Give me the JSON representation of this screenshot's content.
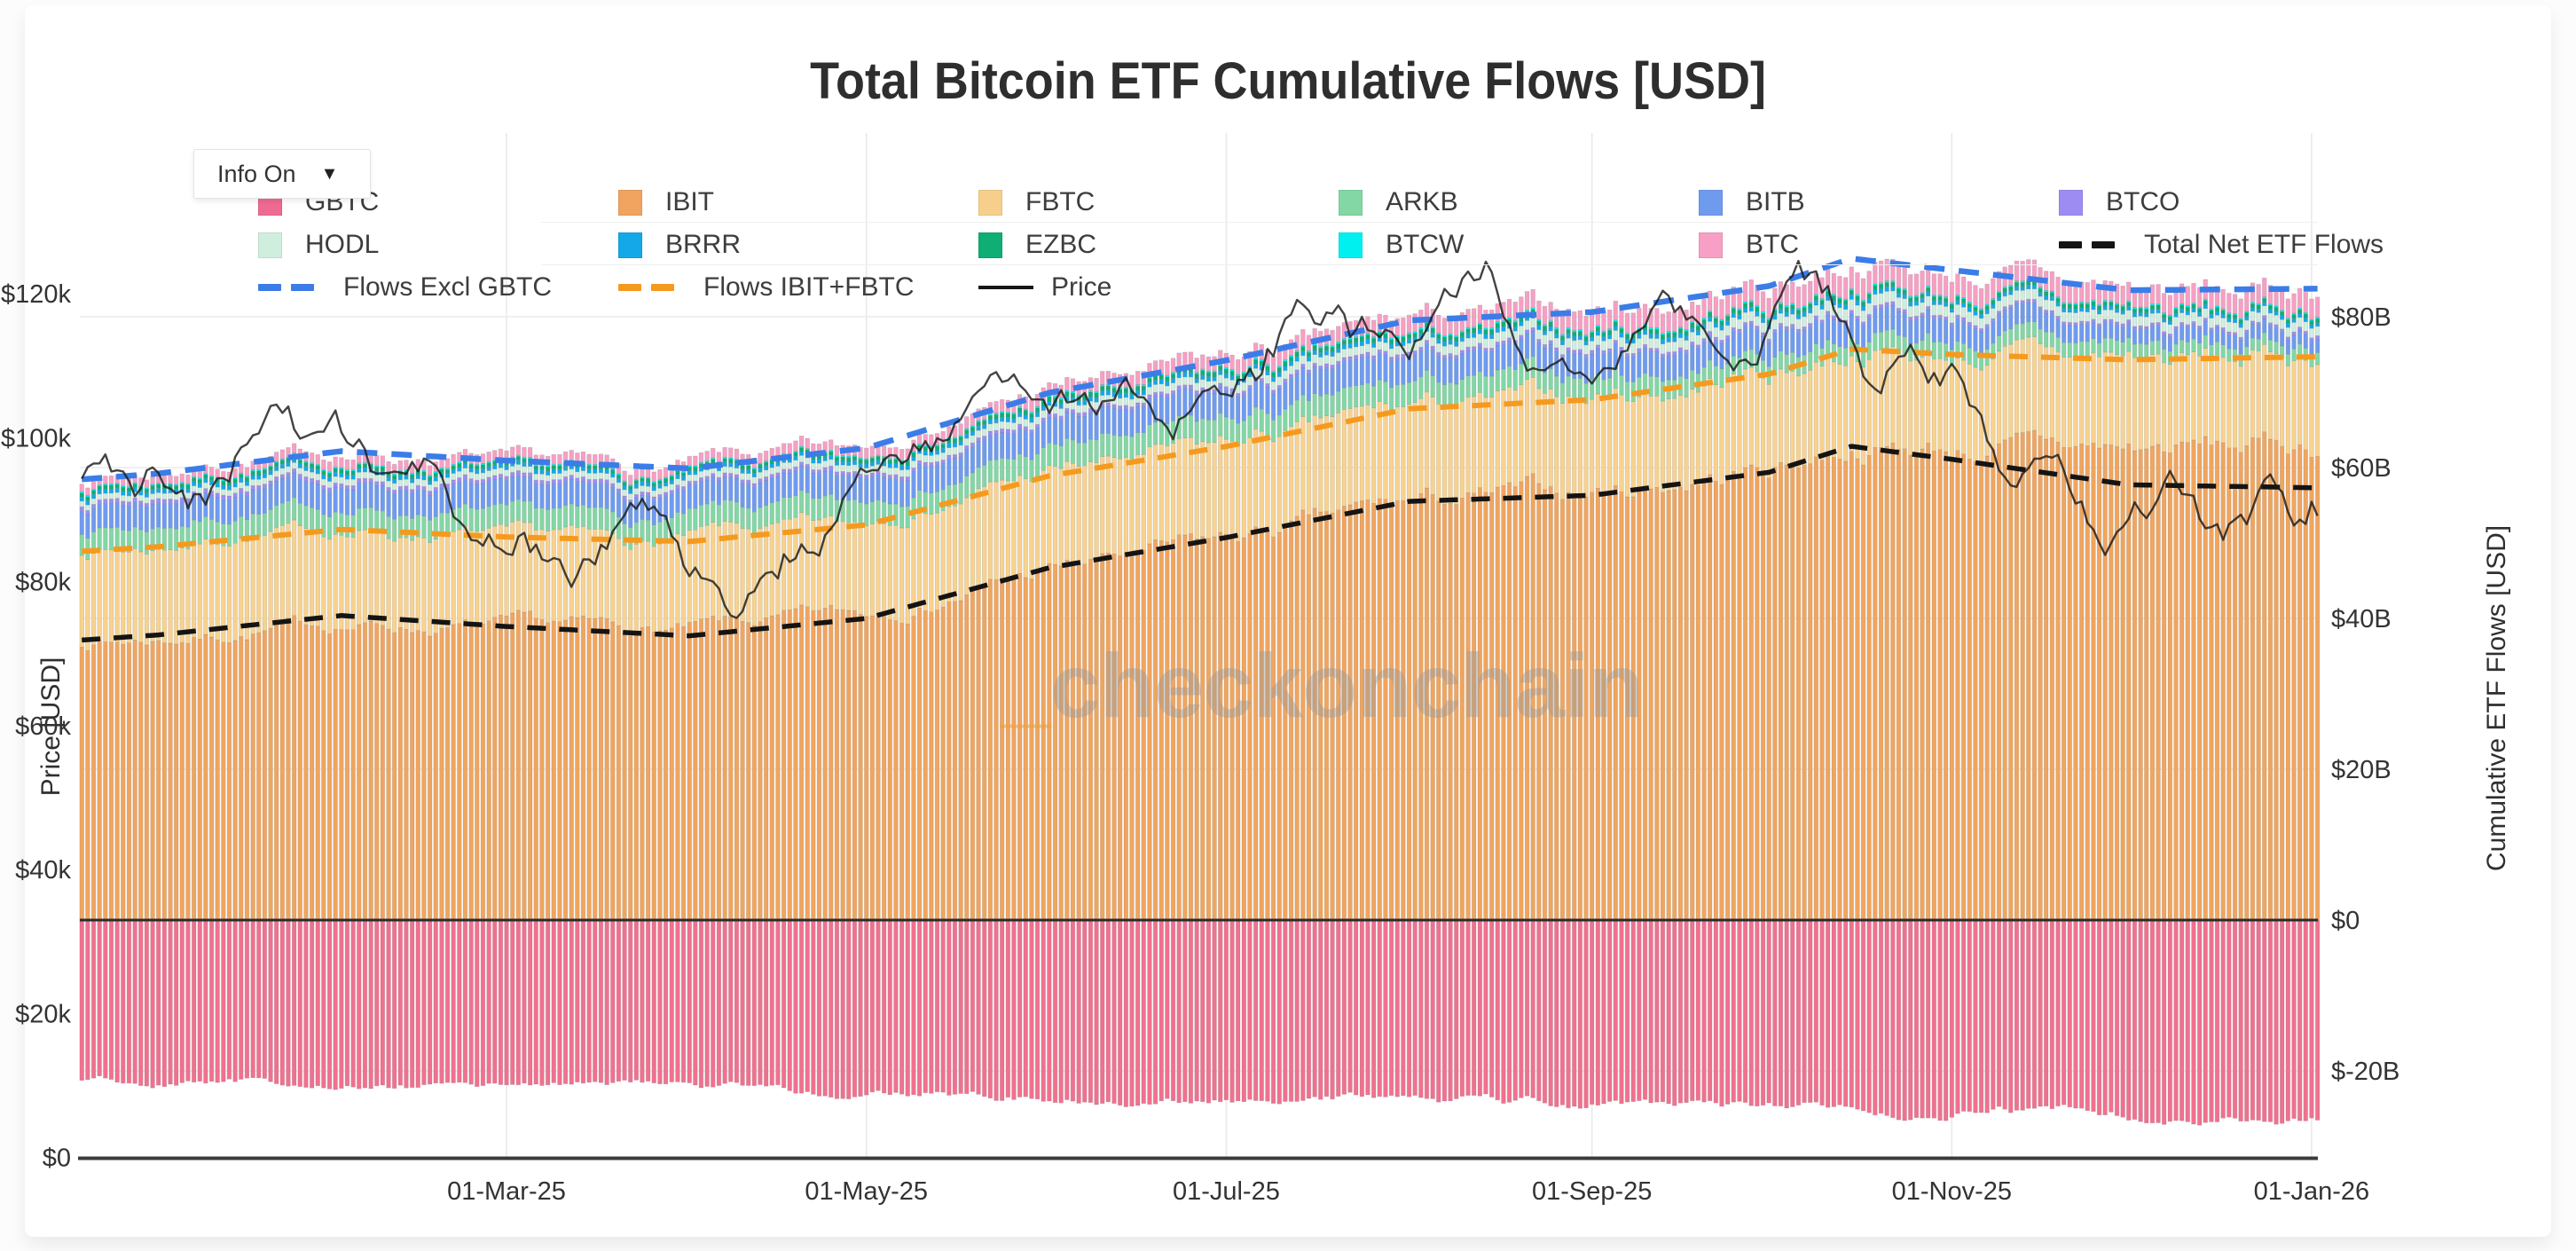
{
  "title": "Total Bitcoin ETF Cumulative Flows [USD]",
  "controls": {
    "info_label": "Info On",
    "dropdown_arrow": "▼"
  },
  "watermark": {
    "prefix": "_",
    "text": "checkonchain",
    "prefix_color": "#eba23c",
    "text_color": "#9a9a9a"
  },
  "legend": {
    "items": [
      {
        "label": "GBTC",
        "color": "#EF6A92",
        "icon": "square",
        "row": 0,
        "col": 0
      },
      {
        "label": "IBIT",
        "color": "#F1A45F",
        "icon": "square",
        "row": 0,
        "col": 1
      },
      {
        "label": "FBTC",
        "color": "#F7CF8C",
        "icon": "square",
        "row": 0,
        "col": 2
      },
      {
        "label": "ARKB",
        "color": "#82D7A5",
        "icon": "square",
        "row": 0,
        "col": 3
      },
      {
        "label": "BITB",
        "color": "#6F9BEF",
        "icon": "square",
        "row": 0,
        "col": 4
      },
      {
        "label": "BTCO",
        "color": "#9D8DF2",
        "icon": "square",
        "row": 0,
        "col": 5
      },
      {
        "label": "HODL",
        "color": "#CFEEDE",
        "icon": "square",
        "row": 1,
        "col": 0
      },
      {
        "label": "BRRR",
        "color": "#14A8E8",
        "icon": "square",
        "row": 1,
        "col": 1
      },
      {
        "label": "EZBC",
        "color": "#0FAE74",
        "icon": "square",
        "row": 1,
        "col": 2
      },
      {
        "label": "BTCW",
        "color": "#00F0F0",
        "icon": "square",
        "row": 1,
        "col": 3
      },
      {
        "label": "BTC",
        "color": "#F79FC4",
        "icon": "square",
        "row": 1,
        "col": 4
      },
      {
        "label": "Total Net ETF Flows",
        "color": "#141414",
        "icon": "dashes",
        "row": 1,
        "col": 5
      },
      {
        "label": "Flows Excl GBTC",
        "color": "#3B7DE8",
        "icon": "dashes",
        "row": 2,
        "col": 0
      },
      {
        "label": "Flows IBIT+FBTC",
        "color": "#F59A1E",
        "icon": "dashes",
        "row": 2,
        "col": 1
      },
      {
        "label": "Price",
        "color": "#161616",
        "icon": "line",
        "row": 2,
        "col": 2
      }
    ]
  },
  "chart_data": {
    "type": "bar",
    "note": "stacked daily cumulative-flow bars (USD billions, right axis) + BTC price line (USD thousands, left axis); day 0 = 01-Jan-25",
    "x_axis": {
      "tick_labels": [
        "01-Mar-25",
        "01-May-25",
        "01-Jul-25",
        "01-Sep-25",
        "01-Nov-25",
        "01-Jan-26"
      ],
      "tick_days": [
        59,
        120,
        181,
        243,
        304,
        365
      ],
      "range_days": [
        -13,
        366
      ]
    },
    "y_left": {
      "title": "Price [USD]",
      "tick_labels": [
        "$0",
        "$20k",
        "$40k",
        "$60k",
        "$80k",
        "$100k",
        "$120k"
      ],
      "tick_values": [
        0,
        20,
        40,
        60,
        80,
        100,
        120
      ],
      "ylim": [
        0,
        130
      ]
    },
    "y_right": {
      "title": "Cumulative ETF Flows [USD]",
      "tick_labels": [
        "$80B",
        "$60B",
        "$40B",
        "$20B",
        "$0",
        "$-20B"
      ],
      "tick_values": [
        80,
        60,
        40,
        20,
        0,
        -20
      ],
      "ylim": [
        -32,
        95
      ]
    },
    "keyframe_days": [
      -13,
      0,
      31,
      59,
      90,
      120,
      151,
      181,
      212,
      243,
      273,
      287,
      304,
      334,
      366
    ],
    "series": [
      {
        "name": "IBIT",
        "color": "#F0A55E",
        "values": [
          36.8,
          37.3,
          39.3,
          38.6,
          38.3,
          40.3,
          46.3,
          50.0,
          55.0,
          56.5,
          60.0,
          63.0,
          62.6,
          62.3,
          62.8
        ]
      },
      {
        "name": "FBTC",
        "color": "#F8D28E",
        "values": [
          12.1,
          12.2,
          12.5,
          12.2,
          11.9,
          12.1,
          12.6,
          12.8,
          12.8,
          12.5,
          12.4,
          12.7,
          12.4,
          12.0,
          11.9
        ]
      },
      {
        "name": "ARKB",
        "color": "#82D7A5",
        "values": [
          2.8,
          2.85,
          3.0,
          2.9,
          2.75,
          2.85,
          2.95,
          2.95,
          2.85,
          2.6,
          2.45,
          2.45,
          2.2,
          1.75,
          1.65
        ]
      },
      {
        "name": "BITB",
        "color": "#6F9BEF",
        "values": [
          3.2,
          3.25,
          3.4,
          3.3,
          3.2,
          3.3,
          3.5,
          3.55,
          3.5,
          3.35,
          3.25,
          3.3,
          3.05,
          1.95,
          1.85
        ]
      },
      {
        "name": "BTCO",
        "color": "#9D8DF2",
        "values": [
          0.55,
          0.55,
          0.55,
          0.55,
          0.5,
          0.5,
          0.5,
          0.5,
          0.5,
          0.5,
          0.5,
          0.5,
          0.45,
          0.4,
          0.4
        ]
      },
      {
        "name": "HODL",
        "color": "#CFEEDE",
        "values": [
          0.75,
          0.78,
          0.85,
          0.85,
          0.82,
          0.9,
          1.0,
          1.1,
          1.15,
          1.25,
          1.35,
          1.45,
          1.4,
          1.3,
          1.3
        ]
      },
      {
        "name": "BRRR",
        "color": "#14A8E8",
        "values": [
          0.55,
          0.55,
          0.57,
          0.55,
          0.52,
          0.55,
          0.6,
          0.6,
          0.6,
          0.6,
          0.6,
          0.6,
          0.55,
          0.5,
          0.5
        ]
      },
      {
        "name": "EZBC",
        "color": "#0FAE74",
        "values": [
          0.5,
          0.5,
          0.52,
          0.5,
          0.48,
          0.52,
          0.57,
          0.6,
          0.6,
          0.6,
          0.6,
          0.6,
          0.55,
          0.52,
          0.52
        ]
      },
      {
        "name": "BTCW",
        "color": "#00F0F0",
        "values": [
          0.18,
          0.18,
          0.19,
          0.18,
          0.17,
          0.18,
          0.2,
          0.22,
          0.22,
          0.22,
          0.22,
          0.22,
          0.2,
          0.2,
          0.2
        ]
      },
      {
        "name": "BTC",
        "color": "#F79FC4",
        "values": [
          1.0,
          1.05,
          1.3,
          1.3,
          1.25,
          1.4,
          1.7,
          1.9,
          2.3,
          2.5,
          2.7,
          2.9,
          2.8,
          2.6,
          2.6
        ]
      },
      {
        "name": "GBTC",
        "color": "#F0718F",
        "values": [
          -21.3,
          -21.4,
          -21.8,
          -22.0,
          -22.2,
          -22.6,
          -23.2,
          -23.5,
          -24.0,
          -24.3,
          -24.7,
          -24.9,
          -25.1,
          -25.8,
          -26.4
        ]
      }
    ],
    "lines": [
      {
        "name": "Flows Excl GBTC",
        "color": "#3B7DE8",
        "style": "dash",
        "derived": "sum of all positive series"
      },
      {
        "name": "Flows IBIT+FBTC",
        "color": "#F59A1E",
        "style": "dash",
        "derived": "IBIT + FBTC"
      },
      {
        "name": "Total Net ETF Flows",
        "color": "#141414",
        "style": "dash",
        "derived": "sum of all series incl GBTC"
      }
    ],
    "price": {
      "name": "Price",
      "color": "#1a1a1a",
      "keyframes": [
        [
          -13,
          94
        ],
        [
          -9,
          97.5
        ],
        [
          -5,
          93.5
        ],
        [
          0,
          94.5
        ],
        [
          8,
          92
        ],
        [
          16,
          99.5
        ],
        [
          20,
          106
        ],
        [
          24,
          101.5
        ],
        [
          30,
          104.5
        ],
        [
          36,
          97
        ],
        [
          45,
          96.5
        ],
        [
          52,
          88
        ],
        [
          59,
          84.5
        ],
        [
          62,
          86.5
        ],
        [
          69,
          80.5
        ],
        [
          75,
          83.5
        ],
        [
          82,
          87.5
        ],
        [
          90,
          82.5
        ],
        [
          97,
          76.5
        ],
        [
          100,
          79.5
        ],
        [
          106,
          83.5
        ],
        [
          112,
          85
        ],
        [
          117,
          94
        ],
        [
          120,
          94.5
        ],
        [
          127,
          97
        ],
        [
          135,
          103.5
        ],
        [
          141,
          110.5
        ],
        [
          146,
          106.5
        ],
        [
          151,
          104.5
        ],
        [
          158,
          105.5
        ],
        [
          163,
          108.5
        ],
        [
          172,
          101
        ],
        [
          178,
          107.5
        ],
        [
          184,
          108.5
        ],
        [
          194,
          119.5
        ],
        [
          200,
          117
        ],
        [
          205,
          114.5
        ],
        [
          212,
          113.5
        ],
        [
          217,
          117
        ],
        [
          225,
          122.5
        ],
        [
          231,
          112.5
        ],
        [
          238,
          108.5
        ],
        [
          243,
          108.5
        ],
        [
          250,
          115.5
        ],
        [
          256,
          117
        ],
        [
          261,
          115.5
        ],
        [
          266,
          112
        ],
        [
          271,
          114.5
        ],
        [
          278,
          125.5
        ],
        [
          283,
          121
        ],
        [
          287,
          113.5
        ],
        [
          290,
          104.5
        ],
        [
          295,
          110.5
        ],
        [
          300,
          107
        ],
        [
          304,
          110
        ],
        [
          310,
          101.5
        ],
        [
          315,
          95
        ],
        [
          320,
          99.5
        ],
        [
          325,
          91.5
        ],
        [
          329,
          84
        ],
        [
          334,
          86.5
        ],
        [
          340,
          93
        ],
        [
          345,
          91
        ],
        [
          350,
          87.5
        ],
        [
          355,
          88.5
        ],
        [
          358,
          93.5
        ],
        [
          362,
          88
        ],
        [
          366,
          90.5
        ]
      ]
    }
  }
}
